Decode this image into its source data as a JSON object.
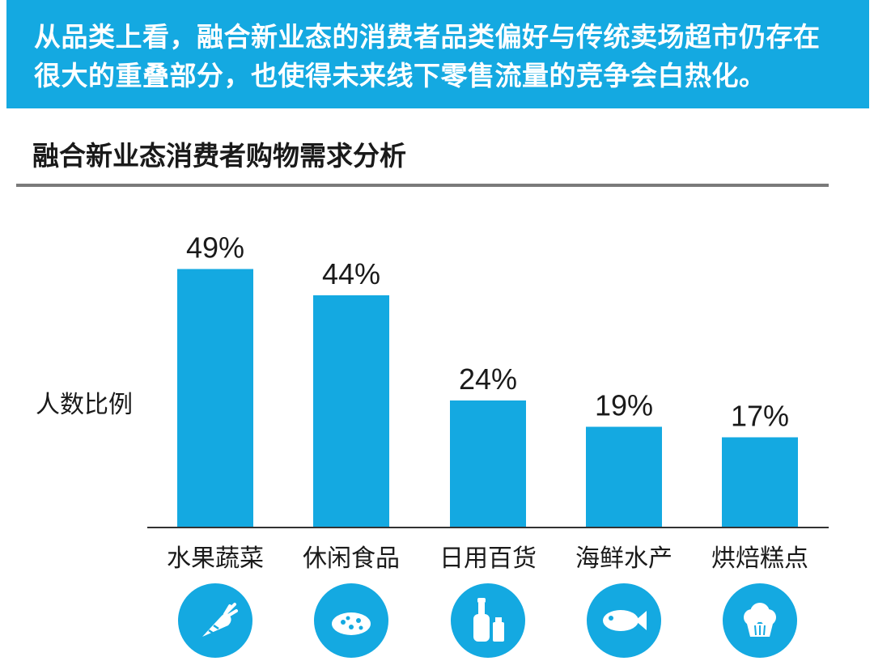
{
  "banner": {
    "line1": "从品类上看，融合新业态的消费者品类偏好与传统卖场超市仍存在",
    "line2": "很大的重叠部分，也使得未来线下零售流量的竞争会白热化。"
  },
  "colors": {
    "accent": "#14a9e1",
    "rule": "#7a7a7a",
    "text": "#1a1a1a"
  },
  "chart_data": {
    "type": "bar",
    "title": "融合新业态消费者购物需求分析",
    "ylabel": "人数比例",
    "xlabel": "",
    "categories": [
      "水果蔬菜",
      "休闲食品",
      "日用百货",
      "海鲜水产",
      "烘焙糕点"
    ],
    "values": [
      49,
      44,
      24,
      19,
      17
    ],
    "value_labels": [
      "49%",
      "44%",
      "24%",
      "19%",
      "17%"
    ],
    "ylim": [
      0,
      50
    ],
    "grid": false,
    "legend": "none",
    "category_icons": [
      "carrot-icon",
      "cookie-icon",
      "bottles-icon",
      "fish-icon",
      "cupcake-icon"
    ]
  }
}
